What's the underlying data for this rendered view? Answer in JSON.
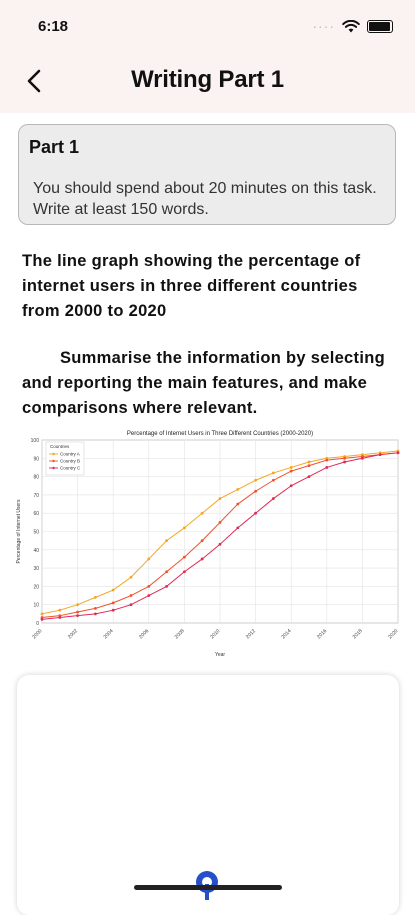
{
  "status": {
    "time": "6:18",
    "signal_dots": "····"
  },
  "header": {
    "title": "Writing Part 1"
  },
  "part_card": {
    "title": "Part 1",
    "text": "You should spend about 20 minutes on this task. Write at least 150 words."
  },
  "prompt": "The line graph showing the percentage of internet users in three different countries from 2000 to 2020",
  "instruction": "Summarise the information by selecting and reporting the main features, and make comparisons where relevant.",
  "colors": {
    "country_a": "#f5a623",
    "country_b": "#f0522f",
    "country_c": "#e02a55",
    "accent": "#2550c8"
  },
  "chart_data": {
    "type": "line",
    "title": "Percentage of Internet Users in Three Different Countries (2000-2020)",
    "xlabel": "Year",
    "ylabel": "Percentage of Internet Users",
    "x": [
      2000,
      2001,
      2002,
      2003,
      2004,
      2005,
      2006,
      2007,
      2008,
      2009,
      2010,
      2011,
      2012,
      2013,
      2014,
      2015,
      2016,
      2017,
      2018,
      2019,
      2020
    ],
    "xticks": [
      "2000",
      "2002",
      "2004",
      "2006",
      "2008",
      "2010",
      "2012",
      "2014",
      "2016",
      "2018",
      "2020"
    ],
    "yticks": [
      "0",
      "10",
      "20",
      "30",
      "40",
      "50",
      "60",
      "70",
      "80",
      "90",
      "100"
    ],
    "xlim": [
      2000,
      2020
    ],
    "ylim": [
      0,
      100
    ],
    "grid": true,
    "legend_title": "Countries",
    "legend_position": "top-left",
    "series": [
      {
        "name": "Country A",
        "values": [
          5,
          7,
          10,
          14,
          18,
          25,
          35,
          45,
          52,
          60,
          68,
          73,
          78,
          82,
          85,
          88,
          90,
          91,
          92,
          93,
          94
        ]
      },
      {
        "name": "Country B",
        "values": [
          3,
          4,
          6,
          8,
          11,
          15,
          20,
          28,
          36,
          45,
          55,
          65,
          72,
          78,
          83,
          86,
          89,
          90,
          91,
          92,
          93
        ]
      },
      {
        "name": "Country C",
        "values": [
          2,
          3,
          4,
          5,
          7,
          10,
          15,
          20,
          28,
          35,
          43,
          52,
          60,
          68,
          75,
          80,
          85,
          88,
          90,
          92,
          93
        ]
      }
    ]
  }
}
